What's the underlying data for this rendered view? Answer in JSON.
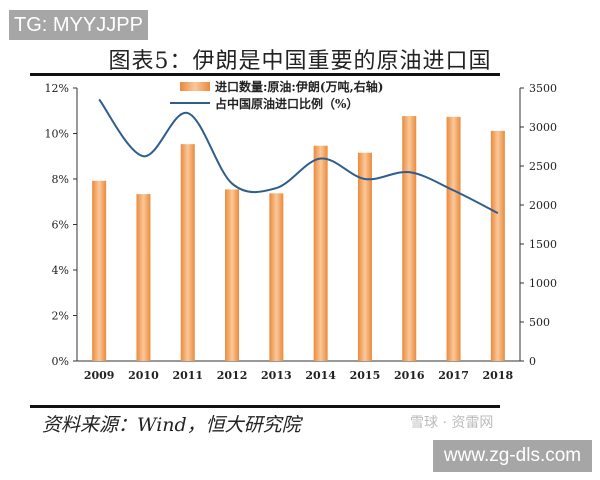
{
  "watermark_top": "TG: MYYJJPP",
  "title": "图表5：伊朗是中国重要的原油进口国",
  "source": "资料来源：Wind，恒大研究院",
  "watermark_logo": "雪球 · 资雷网",
  "watermark_bottom": "www.zg-dls.com",
  "chart_data": {
    "type": "bar+line",
    "categories": [
      "2009",
      "2010",
      "2011",
      "2012",
      "2013",
      "2014",
      "2015",
      "2016",
      "2017",
      "2018"
    ],
    "series": [
      {
        "name": "进口数量:原油:伊朗(万吨,右轴)",
        "type": "bar",
        "axis": "right",
        "color": "#f0a060",
        "values": [
          2310,
          2140,
          2780,
          2200,
          2150,
          2760,
          2670,
          3140,
          3130,
          2950
        ]
      },
      {
        "name": "占中国原油进口比例（%）",
        "type": "line",
        "axis": "left",
        "color": "#2e5d8e",
        "values": [
          11.5,
          9.0,
          10.9,
          7.8,
          7.6,
          8.9,
          8.0,
          8.3,
          7.5,
          6.5
        ]
      }
    ],
    "y_left": {
      "ylim": [
        0,
        12
      ],
      "ticks": [
        "0%",
        "2%",
        "4%",
        "6%",
        "8%",
        "10%",
        "12%"
      ]
    },
    "y_right": {
      "ylim": [
        0,
        3500
      ],
      "ticks": [
        "0",
        "500",
        "1000",
        "1500",
        "2000",
        "2500",
        "3000",
        "3500"
      ]
    },
    "legend": "top-center",
    "grid": false
  }
}
